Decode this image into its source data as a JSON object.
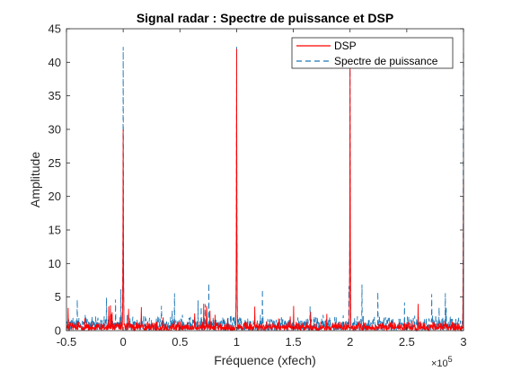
{
  "chart_data": {
    "type": "line",
    "title": "Signal radar : Spectre de puissance et DSP",
    "xlabel": "Fréquence (xfech)",
    "ylabel": "Amplitude",
    "x_exponent_label": "×10",
    "x_exponent_power": "5",
    "xlim": [
      -50000,
      300000
    ],
    "ylim": [
      0,
      45
    ],
    "x_ticks": [
      -50000,
      0,
      50000,
      100000,
      150000,
      200000,
      250000,
      300000
    ],
    "x_tick_labels": [
      "-0.5",
      "0",
      "0.5",
      "1",
      "1.5",
      "2",
      "2.5",
      "3"
    ],
    "y_ticks": [
      0,
      5,
      10,
      15,
      20,
      25,
      30,
      35,
      40,
      45
    ],
    "y_tick_labels": [
      "0",
      "5",
      "10",
      "15",
      "20",
      "25",
      "30",
      "35",
      "40",
      "45"
    ],
    "grid": false,
    "legend_position": "top-right",
    "series": [
      {
        "name": "DSP",
        "color": "#ff0000",
        "style": "solid",
        "noise_level": 1.5,
        "peaks": [
          {
            "x": 0,
            "y": 30
          },
          {
            "x": 100000,
            "y": 42
          },
          {
            "x": 200000,
            "y": 40
          },
          {
            "x": 300000,
            "y": 22.5
          }
        ]
      },
      {
        "name": "Spectre de puissance",
        "color": "#1f77b4",
        "style": "dashed",
        "noise_level": 2.5,
        "peaks": [
          {
            "x": 0,
            "y": 42.3
          },
          {
            "x": 100000,
            "y": 42.3
          },
          {
            "x": 200000,
            "y": 41
          },
          {
            "x": 300000,
            "y": 42
          }
        ]
      }
    ]
  }
}
